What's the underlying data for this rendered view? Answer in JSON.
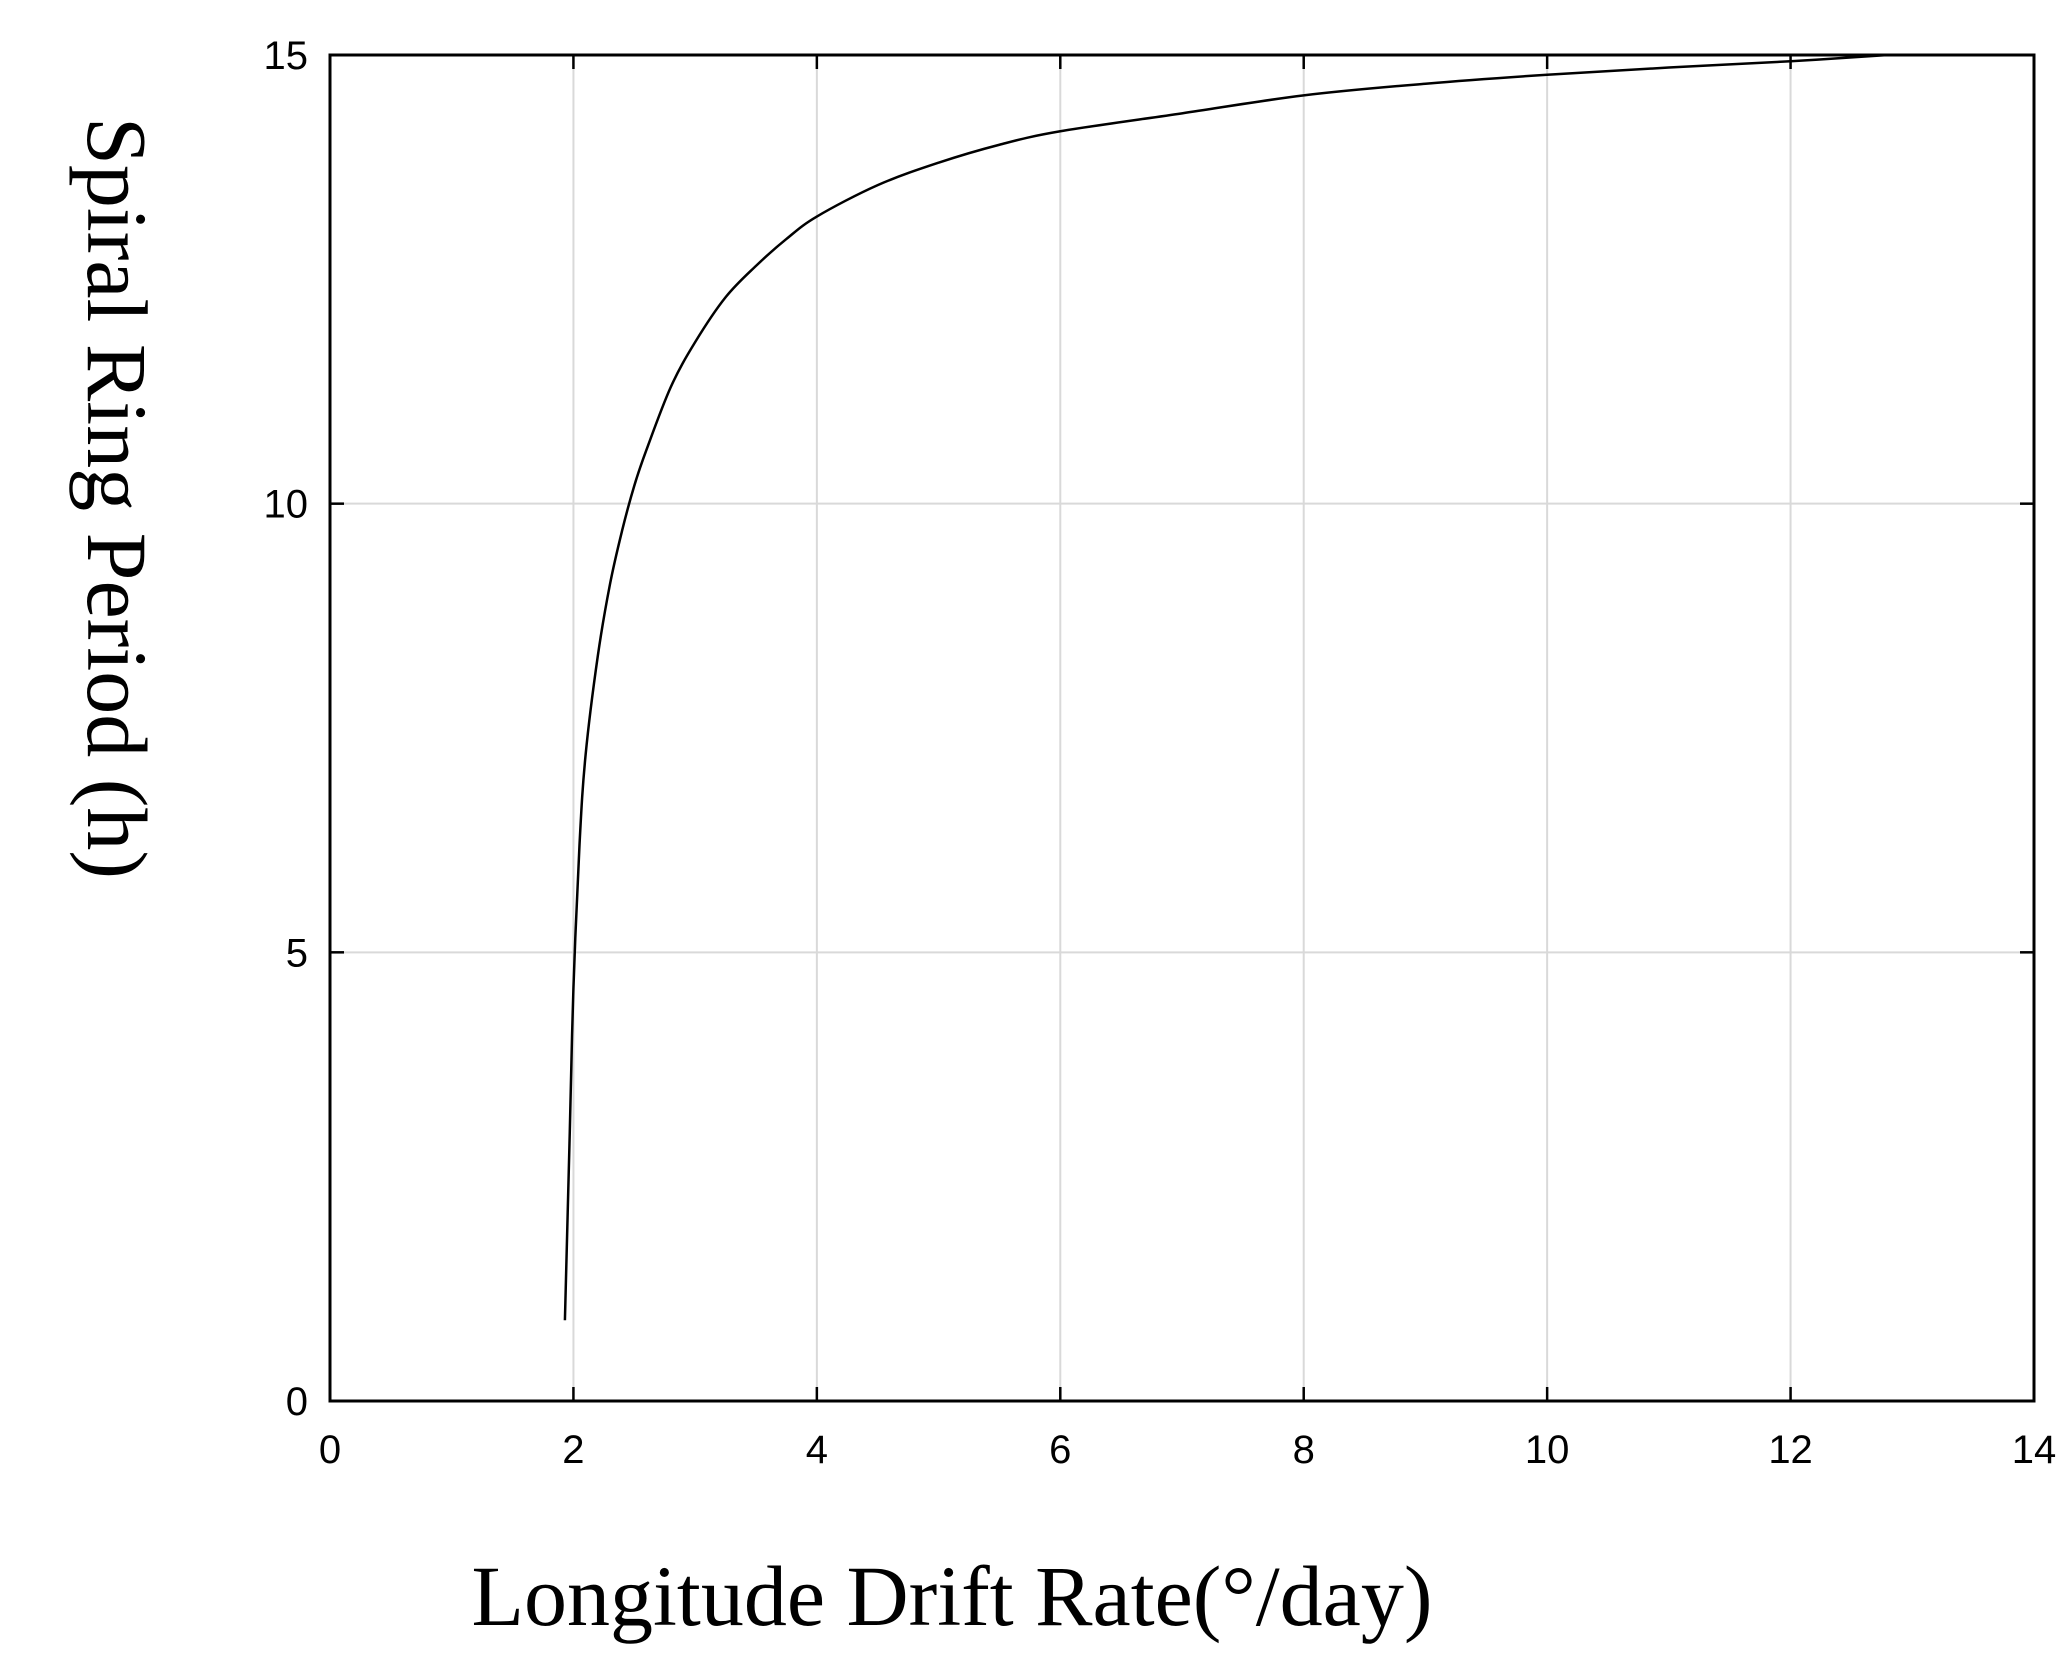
{
  "chart_data": {
    "type": "line",
    "title": "",
    "xlabel": "Longitude Drift Rate(°/day)",
    "ylabel": "Spiral Ring Period (h)",
    "xlim": [
      0,
      14
    ],
    "ylim": [
      0,
      15
    ],
    "xticks": [
      0,
      2,
      4,
      6,
      8,
      10,
      12,
      14
    ],
    "yticks": [
      0,
      5,
      10,
      15
    ],
    "xtick_labels": [
      "0",
      "2",
      "4",
      "6",
      "8",
      "10",
      "12",
      "14"
    ],
    "ytick_labels": [
      "0",
      "5",
      "10",
      "15"
    ],
    "grid": true,
    "series": [
      {
        "color": "#000000",
        "x": [
          1.93,
          1.97,
          2.0,
          2.05,
          2.1,
          2.2,
          2.3,
          2.4,
          2.5,
          2.6,
          2.8,
          3.0,
          3.25,
          3.5,
          3.75,
          4.0,
          4.5,
          5.0,
          5.5,
          6.0,
          7.0,
          8.0,
          9.0,
          10.0,
          11.0,
          12.0,
          12.8
        ],
        "y": [
          0.9,
          3.0,
          4.6,
          6.2,
          7.2,
          8.3,
          9.1,
          9.7,
          10.2,
          10.6,
          11.3,
          11.8,
          12.3,
          12.65,
          12.95,
          13.2,
          13.55,
          13.8,
          14.0,
          14.15,
          14.35,
          14.55,
          14.68,
          14.78,
          14.86,
          14.93,
          15.0
        ]
      }
    ]
  }
}
